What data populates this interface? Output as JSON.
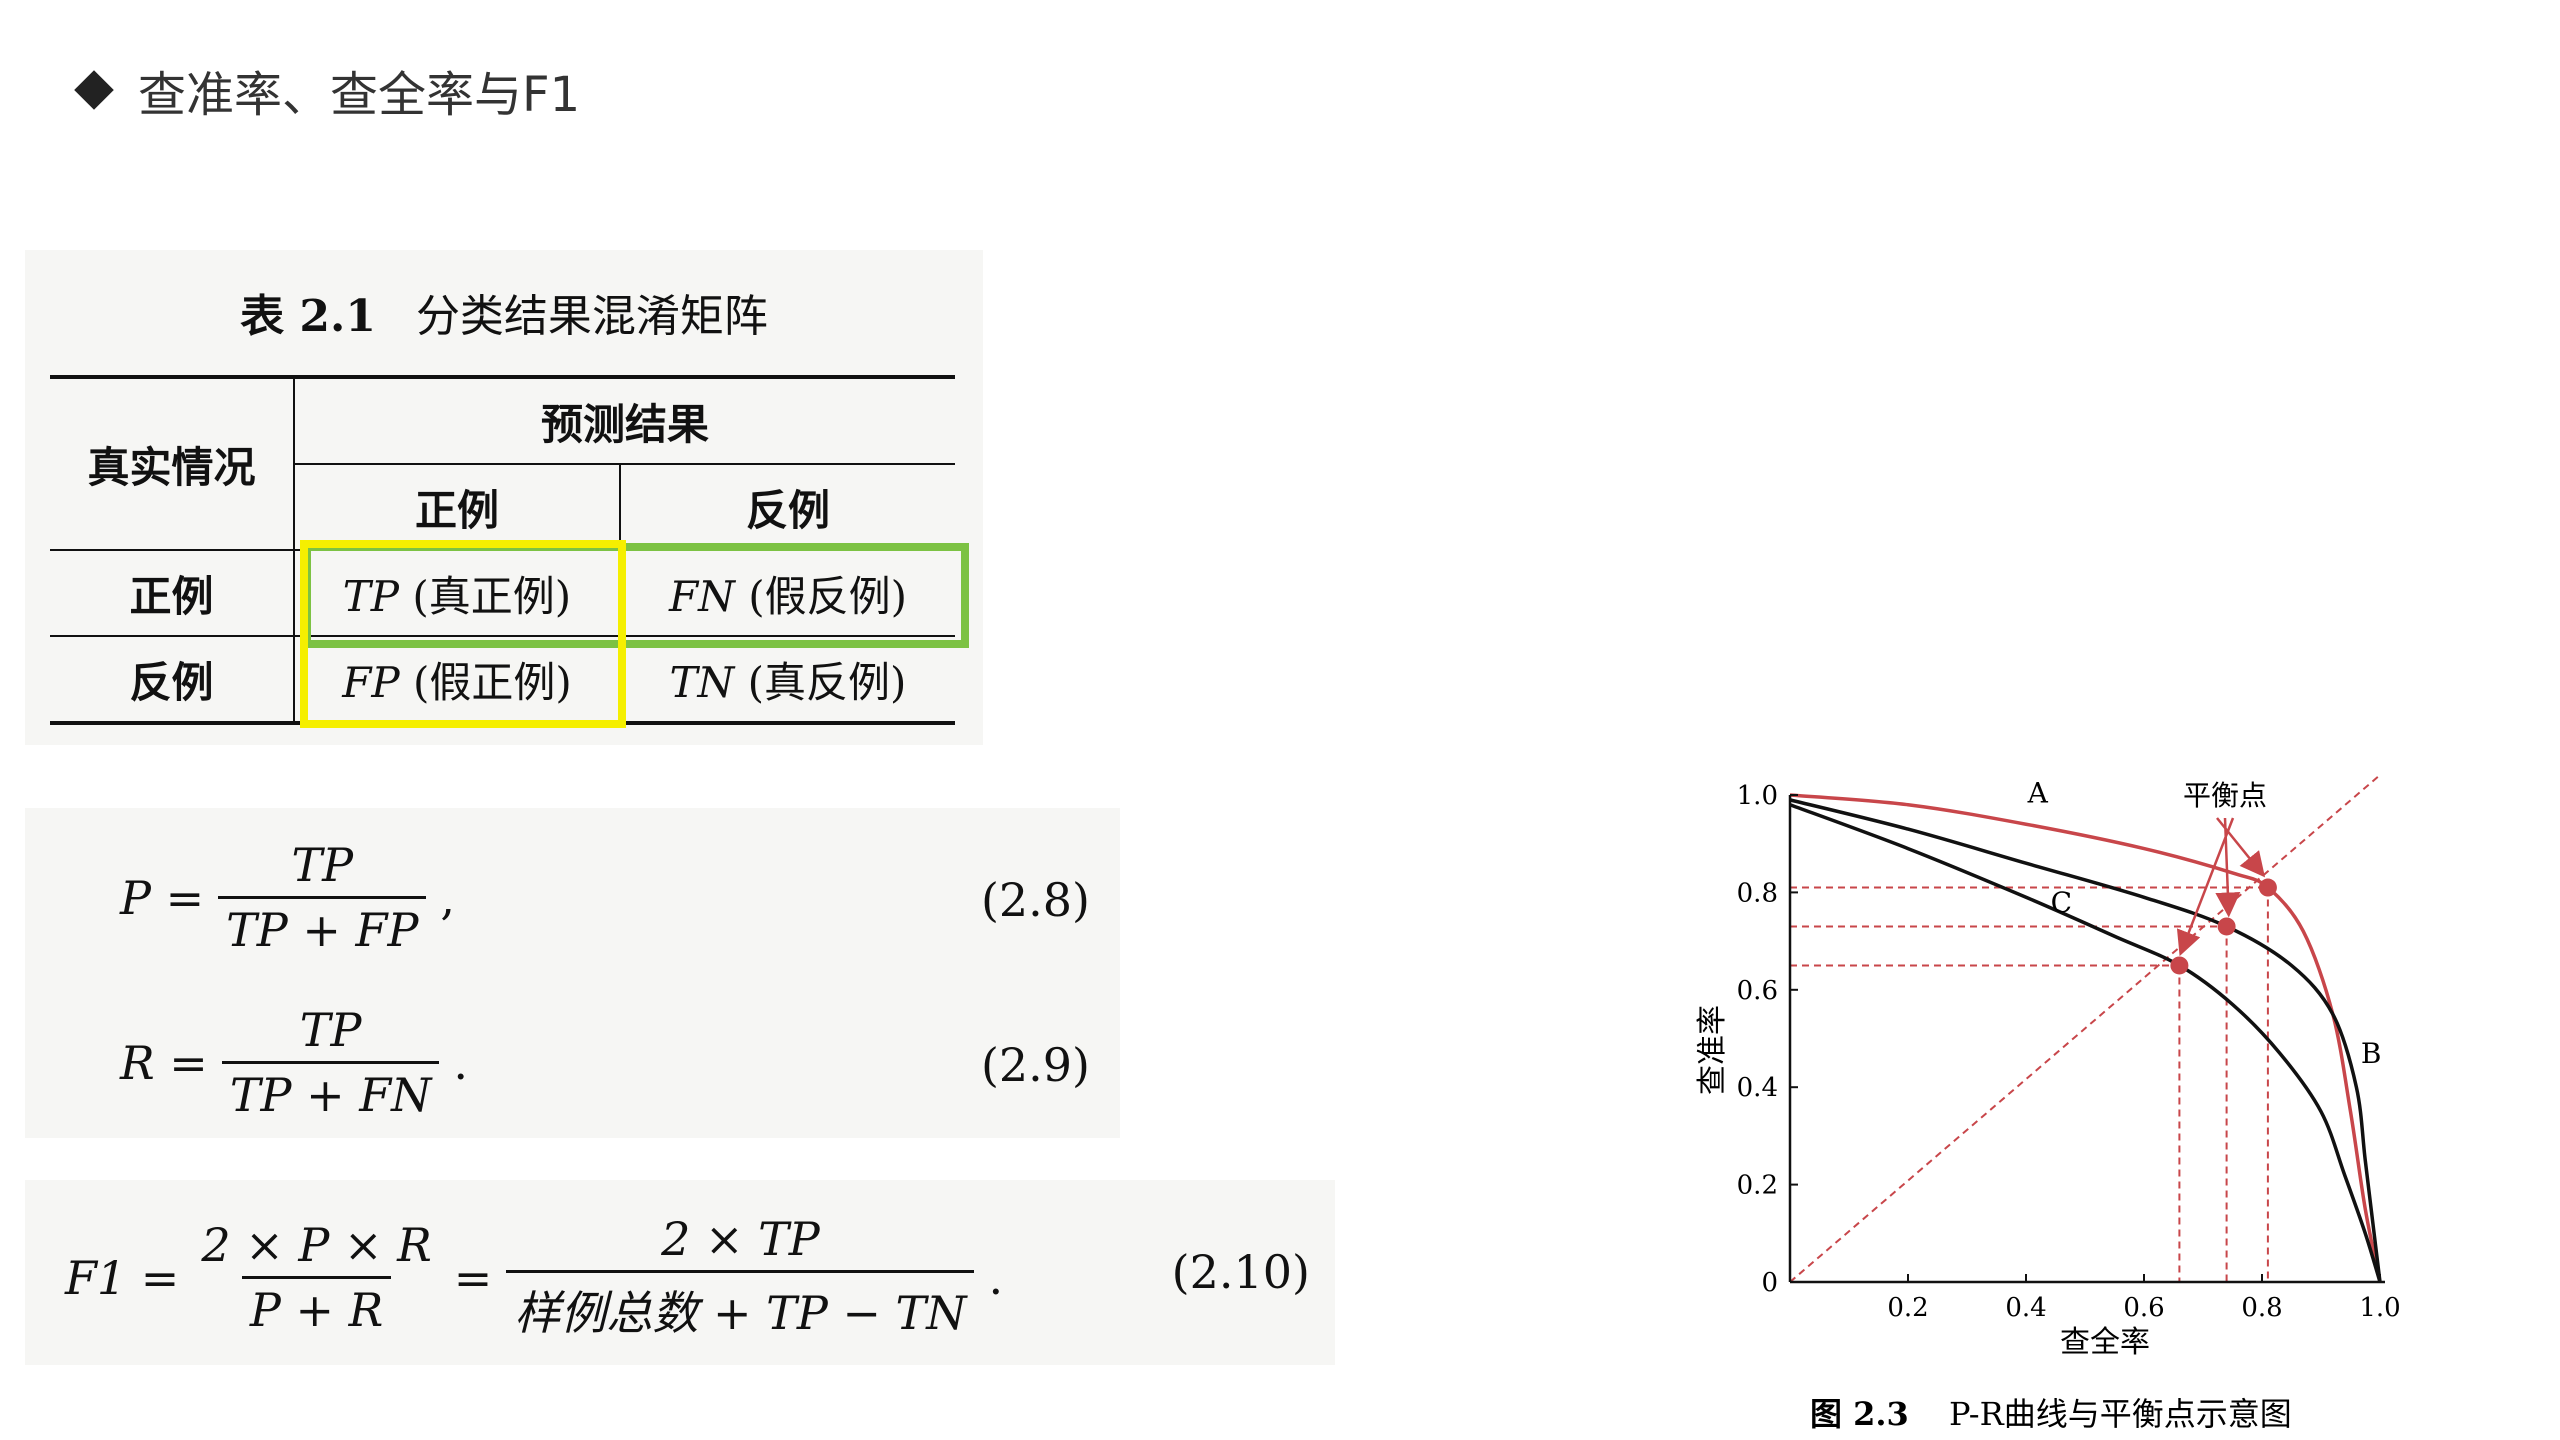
{
  "slide": {
    "title": "查准率、查全率与F1"
  },
  "table": {
    "caption_label": "表 2.1",
    "caption_text": "分类结果混淆矩阵",
    "row_header": "真实情况",
    "pred_header": "预测结果",
    "col_pos": "正例",
    "col_neg": "反例",
    "row_pos": "正例",
    "row_neg": "反例",
    "tp_abbr": "TP",
    "tp_name": "(真正例)",
    "fn_abbr": "FN",
    "fn_name": "(假反例)",
    "fp_abbr": "FP",
    "fp_name": "(假正例)",
    "tn_abbr": "TN",
    "tn_name": "(真反例)",
    "highlight_green": "#7cc243",
    "highlight_yellow": "#f5ef00"
  },
  "formulas": {
    "p": {
      "lhs": "P =",
      "num": "TP",
      "den": "TP + FP",
      "tail": ",",
      "number": "(2.8)"
    },
    "r": {
      "lhs": "R =",
      "num": "TP",
      "den": "TP + FN",
      "tail": ".",
      "number": "(2.9)"
    },
    "f1": {
      "lhs": "F1 =",
      "num1": "2 × P × R",
      "den1": "P + R",
      "eq": "=",
      "num2": "2 × TP",
      "den2": "样例总数 + TP − TN",
      "tail": ".",
      "number": "(2.10)"
    }
  },
  "chart_data": {
    "type": "line",
    "caption_label": "图 2.3",
    "caption_text": "P-R曲线与平衡点示意图",
    "xlabel": "查全率",
    "ylabel": "查准率",
    "xlim": [
      0,
      1.0
    ],
    "ylim": [
      0,
      1.0
    ],
    "x_ticks": [
      "0.2",
      "0.4",
      "0.6",
      "0.8",
      "1.0"
    ],
    "y_ticks": [
      "0",
      "0.2",
      "0.4",
      "0.6",
      "0.8",
      "1.0"
    ],
    "series": [
      {
        "name": "A",
        "color": "#c8464a",
        "points": [
          [
            0,
            1.0
          ],
          [
            0.2,
            0.98
          ],
          [
            0.4,
            0.94
          ],
          [
            0.6,
            0.89
          ],
          [
            0.75,
            0.84
          ],
          [
            0.81,
            0.81
          ],
          [
            0.87,
            0.72
          ],
          [
            0.92,
            0.55
          ],
          [
            0.95,
            0.35
          ],
          [
            0.975,
            0.15
          ],
          [
            1.0,
            0
          ]
        ]
      },
      {
        "name": "B",
        "color": "#111111",
        "points": [
          [
            0,
            0.99
          ],
          [
            0.2,
            0.93
          ],
          [
            0.4,
            0.86
          ],
          [
            0.6,
            0.79
          ],
          [
            0.74,
            0.73
          ],
          [
            0.85,
            0.65
          ],
          [
            0.92,
            0.55
          ],
          [
            0.96,
            0.4
          ],
          [
            0.975,
            0.25
          ],
          [
            0.99,
            0.1
          ],
          [
            1.0,
            0
          ]
        ]
      },
      {
        "name": "C",
        "color": "#111111",
        "points": [
          [
            0,
            0.98
          ],
          [
            0.2,
            0.89
          ],
          [
            0.4,
            0.79
          ],
          [
            0.55,
            0.71
          ],
          [
            0.66,
            0.65
          ],
          [
            0.75,
            0.57
          ],
          [
            0.83,
            0.47
          ],
          [
            0.9,
            0.35
          ],
          [
            0.94,
            0.22
          ],
          [
            0.975,
            0.1
          ],
          [
            1.0,
            0
          ]
        ]
      }
    ],
    "break_even_label": "平衡点",
    "break_even_points": [
      [
        0.81,
        0.81
      ],
      [
        0.74,
        0.73
      ],
      [
        0.66,
        0.65
      ]
    ],
    "break_even_color": "#c8464a"
  }
}
